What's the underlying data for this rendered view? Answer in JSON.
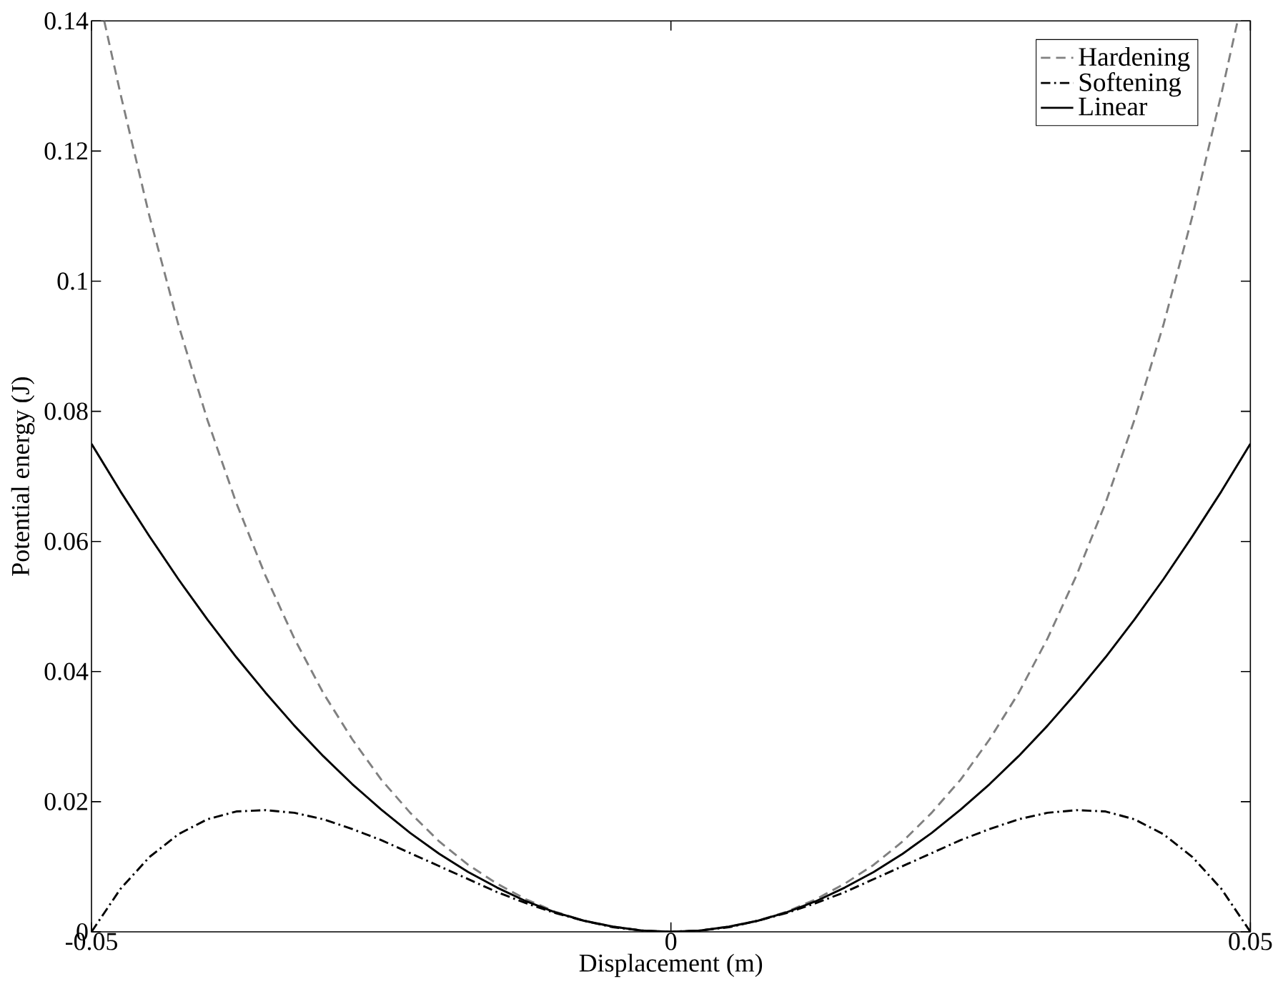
{
  "chart_data": {
    "type": "line",
    "xlabel": "Displacement (m)",
    "ylabel": "Potential energy (J)",
    "xlim": [
      -0.05,
      0.05
    ],
    "ylim": [
      0,
      0.14
    ],
    "xticks": [
      -0.05,
      0,
      0.05
    ],
    "yticks": [
      0,
      0.02,
      0.04,
      0.06,
      0.08,
      0.1,
      0.12,
      0.14
    ],
    "grid": false,
    "legend": "top right",
    "marker": "none",
    "series": [
      {
        "name": "Hardening",
        "color": "#808080",
        "line_style": "dashed",
        "x": [
          -0.0489,
          -0.0475,
          -0.045,
          -0.0425,
          -0.04,
          -0.0375,
          -0.035,
          -0.0325,
          -0.03,
          -0.0275,
          -0.025,
          -0.0225,
          -0.02,
          -0.0175,
          -0.015,
          -0.0125,
          -0.01,
          -0.0075,
          -0.005,
          -0.0025,
          0,
          0.0025,
          0.005,
          0.0075,
          0.01,
          0.0125,
          0.015,
          0.0175,
          0.02,
          0.0225,
          0.025,
          0.0275,
          0.03,
          0.0325,
          0.035,
          0.0375,
          0.04,
          0.0425,
          0.045,
          0.0475,
          0.0489
        ],
        "values": [
          0.14,
          0.1288,
          0.11,
          0.0933,
          0.0787,
          0.0659,
          0.0548,
          0.0451,
          0.0367,
          0.0296,
          0.0234,
          0.0183,
          0.0139,
          0.0103,
          0.0074,
          0.005,
          0.0031,
          0.0017,
          0.0008,
          0.0002,
          0,
          0.0002,
          0.0008,
          0.0017,
          0.0031,
          0.005,
          0.0074,
          0.0103,
          0.0139,
          0.0183,
          0.0234,
          0.0296,
          0.0367,
          0.0451,
          0.0548,
          0.0659,
          0.0787,
          0.0933,
          0.11,
          0.1288,
          0.14
        ]
      },
      {
        "name": "Softening",
        "color": "#000000",
        "line_style": "dashdot",
        "x": [
          -0.05,
          -0.0475,
          -0.045,
          -0.0425,
          -0.04,
          -0.0375,
          -0.035,
          -0.0325,
          -0.03,
          -0.0275,
          -0.025,
          -0.0225,
          -0.02,
          -0.0175,
          -0.015,
          -0.0125,
          -0.01,
          -0.0075,
          -0.005,
          -0.0025,
          0,
          0.0025,
          0.005,
          0.0075,
          0.01,
          0.0125,
          0.015,
          0.0175,
          0.02,
          0.0225,
          0.025,
          0.0275,
          0.03,
          0.0325,
          0.035,
          0.0375,
          0.04,
          0.0425,
          0.045,
          0.0475,
          0.05
        ],
        "values": [
          0,
          0.0066,
          0.0115,
          0.015,
          0.0173,
          0.0185,
          0.0187,
          0.0183,
          0.0173,
          0.0158,
          0.0141,
          0.0121,
          0.0101,
          0.0081,
          0.0061,
          0.0044,
          0.0029,
          0.0017,
          0.0007,
          0.0002,
          0,
          0.0002,
          0.0007,
          0.0017,
          0.0029,
          0.0044,
          0.0061,
          0.0081,
          0.0101,
          0.0121,
          0.0141,
          0.0158,
          0.0173,
          0.0183,
          0.0187,
          0.0185,
          0.0173,
          0.015,
          0.0115,
          0.0066,
          0
        ]
      },
      {
        "name": "Linear",
        "color": "#000000",
        "line_style": "solid",
        "x": [
          -0.05,
          -0.0475,
          -0.045,
          -0.0425,
          -0.04,
          -0.0375,
          -0.035,
          -0.0325,
          -0.03,
          -0.0275,
          -0.025,
          -0.0225,
          -0.02,
          -0.0175,
          -0.015,
          -0.0125,
          -0.01,
          -0.0075,
          -0.005,
          -0.0025,
          0,
          0.0025,
          0.005,
          0.0075,
          0.01,
          0.0125,
          0.015,
          0.0175,
          0.02,
          0.0225,
          0.025,
          0.0275,
          0.03,
          0.0325,
          0.035,
          0.0375,
          0.04,
          0.0425,
          0.045,
          0.0475,
          0.05
        ],
        "values": [
          0.075,
          0.0677,
          0.0608,
          0.0542,
          0.048,
          0.0422,
          0.0368,
          0.0317,
          0.027,
          0.0227,
          0.0188,
          0.0152,
          0.012,
          0.0092,
          0.0068,
          0.0047,
          0.003,
          0.0017,
          0.0008,
          0.0002,
          0,
          0.0002,
          0.0008,
          0.0017,
          0.003,
          0.0047,
          0.0068,
          0.0092,
          0.012,
          0.0152,
          0.0188,
          0.0227,
          0.027,
          0.0317,
          0.0368,
          0.0422,
          0.048,
          0.0542,
          0.0608,
          0.0677,
          0.075
        ]
      }
    ]
  }
}
